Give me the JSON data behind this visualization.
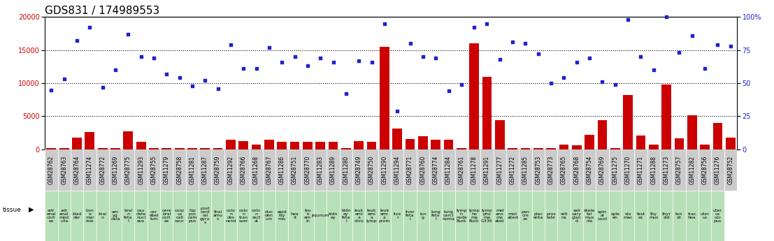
{
  "title": "GDS831 / 174989553",
  "samples": [
    "GSM28762",
    "GSM28763",
    "GSM28764",
    "GSM11274",
    "GSM28772",
    "GSM11269",
    "GSM28775",
    "GSM11293",
    "GSM28755",
    "GSM11279",
    "GSM28758",
    "GSM11281",
    "GSM11287",
    "GSM28759",
    "GSM11292",
    "GSM28766",
    "GSM11268",
    "GSM28767",
    "GSM11286",
    "GSM28751",
    "GSM28770",
    "GSM11283",
    "GSM11289",
    "GSM11280",
    "GSM28749",
    "GSM28750",
    "GSM11290",
    "GSM11294",
    "GSM28771",
    "GSM28760",
    "GSM28774",
    "GSM11284",
    "GSM28761",
    "GSM11278",
    "GSM11291",
    "GSM11277",
    "GSM11272",
    "GSM11285",
    "GSM28753",
    "GSM28773",
    "GSM28765",
    "GSM28768",
    "GSM28754",
    "GSM28769",
    "GSM11275",
    "GSM11270",
    "GSM11271",
    "GSM11288",
    "GSM11273",
    "GSM28757",
    "GSM11282",
    "GSM28756",
    "GSM11276",
    "GSM28752"
  ],
  "tissues": [
    "adr\nenal\ncort\nex",
    "adr\nenal\nmed\nulla",
    "blad\nder",
    "bon\ne\nmar\nrow",
    "brai\nn",
    "am\nyg\ndala",
    "brai\nn\nfeta\nl",
    "cau\ndate\nnucl\neus",
    "cer\nebel\nlum",
    "cere\nbral\ncort\nex",
    "corp\nus\ncall\nosur",
    "hip\npoc\ncam\npus",
    "post\ncent\nral\ngyru\ns",
    "thal\namu\ns",
    "colo\nn\ndes\ncend",
    "colo\nn\ntran\nsver",
    "colo\nn\nrect\nal",
    "duo\nden\num",
    "epid\nidy\nmis",
    "hea\nrt",
    "leu\nk\nem\nin",
    "jejunum",
    "kidn\ney",
    "kidn\ney\nfeta\nl",
    "leuk\nemi\na\nchro",
    "leuk\nemi\na\nlymp",
    "leuk\nemi\na\nprom",
    "live\nr",
    "liver\nfeta\nl",
    "lun\ng",
    "lung\nfeta\nl",
    "lung\ncarci\nnoma",
    "lymp\nh\nnode\nBurk",
    "lymp\nho\nma\nBurk",
    "lymp\npho\nma\nG336",
    "mel\nano\nma\nabel",
    "misl\nabed",
    "pan\ncre\nas",
    "plac\nenta",
    "pros\ntate",
    "reti\nna",
    "sali\nvary\nglan\nd",
    "skele\ntal\nmus\ncle",
    "spin\nal\ncord",
    "sple\nen",
    "sto\nmac",
    "test\nes",
    "thy\nmus",
    "thyr\noid",
    "ton\nsil",
    "trac\nhea",
    "uter\nus",
    "uter\nus\ncor\npus"
  ],
  "counts": [
    200,
    200,
    1800,
    2600,
    200,
    200,
    2700,
    1100,
    200,
    200,
    200,
    200,
    200,
    200,
    1500,
    1300,
    700,
    1500,
    1100,
    1100,
    1200,
    1150,
    1100,
    200,
    1300,
    1200,
    15500,
    3100,
    1600,
    2000,
    1500,
    1500,
    200,
    16000,
    11000,
    4400,
    200,
    200,
    200,
    200,
    700,
    600,
    2200,
    4400,
    200,
    8200,
    2100,
    700,
    9800,
    1700,
    5200,
    700,
    4000,
    1800
  ],
  "percentiles_pct": [
    45,
    53,
    82,
    92,
    47,
    60,
    87,
    70,
    69,
    57,
    54,
    48,
    52,
    46,
    79,
    61,
    61,
    77,
    66,
    70,
    63,
    69,
    66,
    42,
    67,
    66,
    95,
    29,
    80,
    70,
    69,
    44,
    49,
    92,
    95,
    68,
    81,
    80,
    72,
    50,
    54,
    66,
    69,
    51,
    49,
    98,
    70,
    60,
    100,
    73,
    86,
    61,
    79,
    78
  ],
  "ylim_left": [
    0,
    20000
  ],
  "yticks_left": [
    0,
    5000,
    10000,
    15000,
    20000
  ],
  "yticks_right": [
    0,
    25,
    50,
    75,
    100
  ],
  "bar_color": "#cc0000",
  "scatter_color": "#2222cc",
  "cell_color": "#b8e0b8",
  "gsm_color": "#cccccc",
  "title_fontsize": 11,
  "tick_fontsize": 5.5,
  "tissue_fontsize": 4.5
}
